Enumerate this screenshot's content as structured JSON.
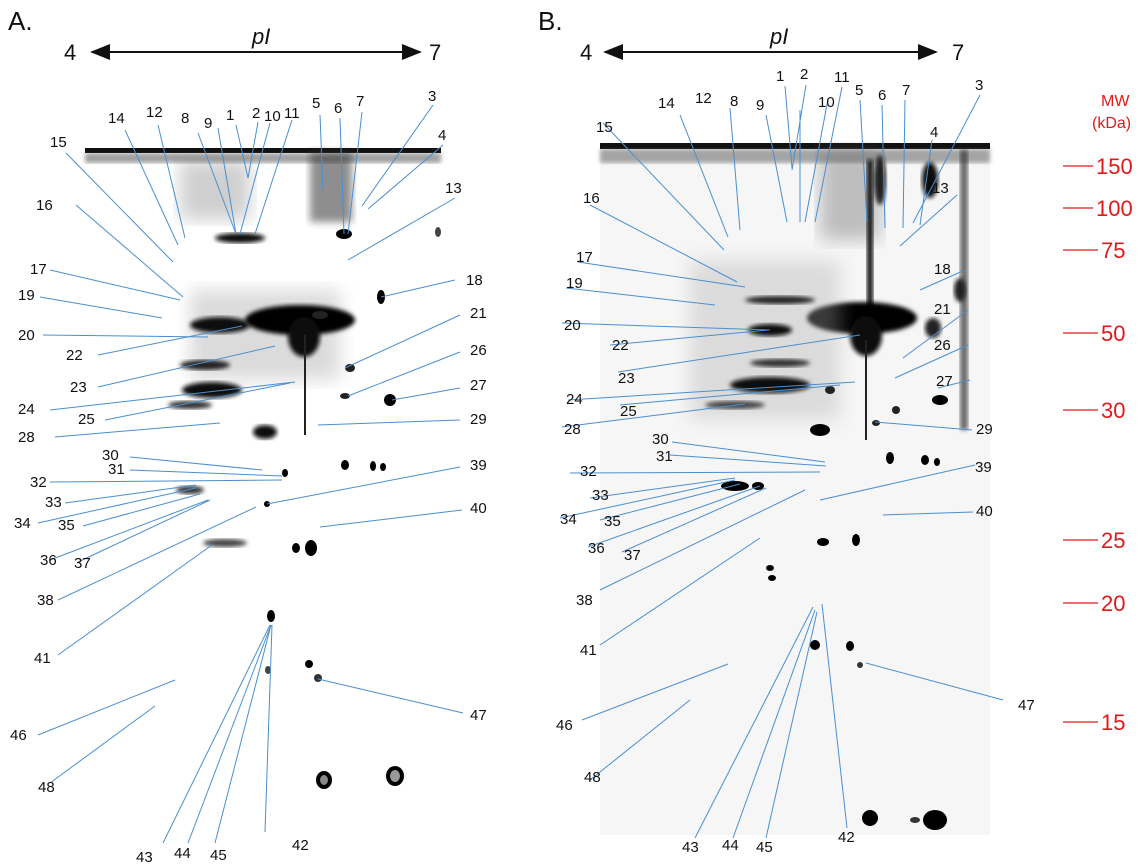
{
  "panelA": {
    "letter": "A.",
    "ph_low": "4",
    "ph_high": "7",
    "ph_axis_label": "pI",
    "spots": [
      "1",
      "2",
      "11",
      "5",
      "6",
      "7",
      "3",
      "14",
      "12",
      "8",
      "9",
      "10",
      "4",
      "15",
      "13",
      "16",
      "18",
      "17",
      "19",
      "21",
      "20",
      "22",
      "26",
      "23",
      "27",
      "24",
      "25",
      "29",
      "28",
      "30",
      "31",
      "39",
      "32",
      "33",
      "34",
      "35",
      "40",
      "36",
      "37",
      "38",
      "41",
      "46",
      "47",
      "48",
      "43",
      "44",
      "45",
      "42"
    ]
  },
  "panelB": {
    "letter": "B.",
    "ph_low": "4",
    "ph_high": "7",
    "ph_axis_label": "pI",
    "spots": [
      "1",
      "2",
      "11",
      "5",
      "6",
      "7",
      "3",
      "14",
      "12",
      "8",
      "9",
      "10",
      "4",
      "15",
      "13",
      "16",
      "18",
      "17",
      "19",
      "21",
      "20",
      "22",
      "26",
      "23",
      "27",
      "24",
      "25",
      "29",
      "28",
      "30",
      "31",
      "39",
      "32",
      "33",
      "34",
      "35",
      "40",
      "36",
      "37",
      "38",
      "41",
      "46",
      "47",
      "48",
      "43",
      "44",
      "45",
      "42"
    ]
  },
  "mw_scale": {
    "title": "MW",
    "unit": "(kDa)",
    "markers": [
      "150",
      "100",
      "75",
      "50",
      "30",
      "25",
      "20",
      "15"
    ]
  },
  "colors": {
    "leader_line": "#4a8fd0",
    "mw_marker": "#e01919"
  }
}
